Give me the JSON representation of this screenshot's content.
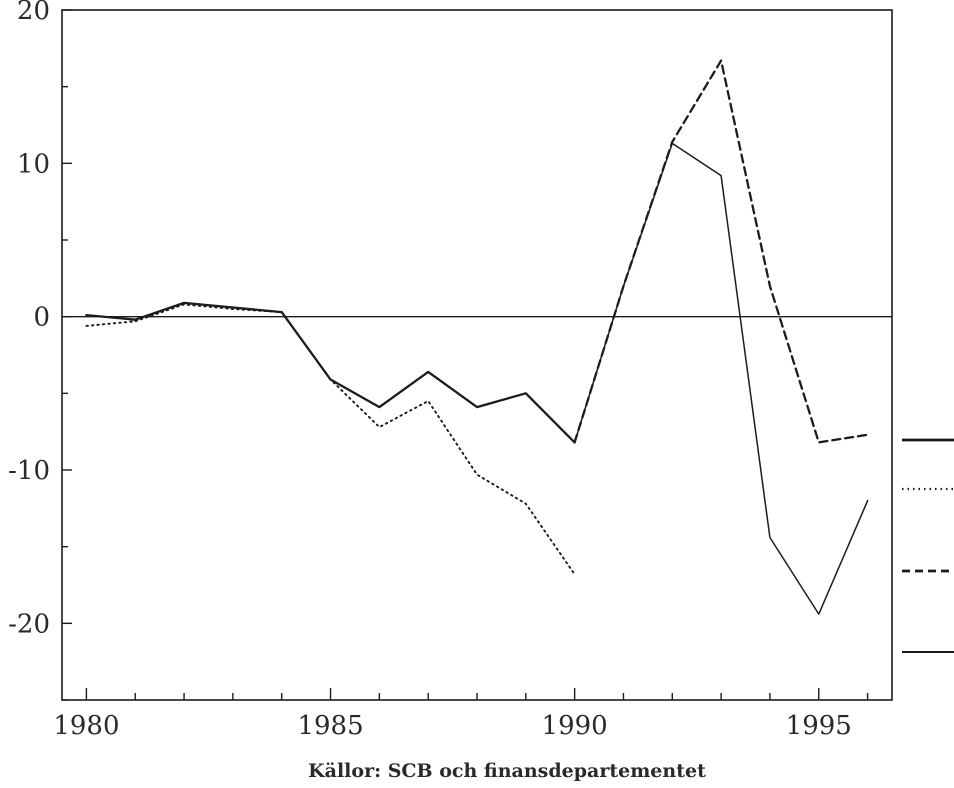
{
  "chart_data": {
    "type": "line",
    "title": "",
    "xlabel": "",
    "ylabel": "",
    "xlim": [
      1979.5,
      1996.5
    ],
    "ylim": [
      -25,
      20
    ],
    "x_ticks": [
      1980,
      1985,
      1990,
      1995
    ],
    "x_tick_labels": [
      "1980",
      "1985",
      "1990",
      "1995"
    ],
    "y_ticks": [
      20,
      10,
      0,
      -10,
      -20
    ],
    "y_tick_labels": [
      "20",
      "10",
      "0",
      "-10",
      "-20"
    ],
    "grid": false,
    "zero_line": true,
    "series": [
      {
        "style": "solid-thick",
        "x": [
          1980,
          1981,
          1982,
          1983,
          1984,
          1985,
          1986,
          1987,
          1988,
          1989,
          1990
        ],
        "y": [
          0.1,
          -0.2,
          0.9,
          0.6,
          0.3,
          -4.1,
          -5.9,
          -3.6,
          -5.9,
          -5.0,
          -8.2
        ]
      },
      {
        "style": "dotted",
        "x": [
          1980,
          1981,
          1982,
          1983,
          1984,
          1985,
          1986,
          1987,
          1988,
          1989,
          1990
        ],
        "y": [
          -0.6,
          -0.3,
          0.8,
          0.5,
          0.3,
          -4.1,
          -7.2,
          -5.5,
          -10.3,
          -12.2,
          -16.8
        ]
      },
      {
        "style": "dashed",
        "x": [
          1990,
          1991,
          1992,
          1993,
          1994,
          1995,
          1996
        ],
        "y": [
          -8.2,
          2.0,
          11.4,
          16.7,
          2.0,
          -8.2,
          -7.7
        ]
      },
      {
        "style": "solid-thin",
        "x": [
          1990,
          1991,
          1992,
          1993,
          1994,
          1995,
          1996
        ],
        "y": [
          -8.2,
          2.0,
          11.3,
          9.2,
          -14.4,
          -19.4,
          -12.0
        ]
      }
    ],
    "legend": {
      "placement": "right",
      "entries": [
        {
          "style": "solid-thick",
          "label": ""
        },
        {
          "style": "dotted",
          "label": ""
        },
        {
          "style": "dashed",
          "label": ""
        },
        {
          "style": "solid-thin",
          "label": ""
        }
      ]
    }
  },
  "source_note": "Källor: SCB och finansdepartementet"
}
